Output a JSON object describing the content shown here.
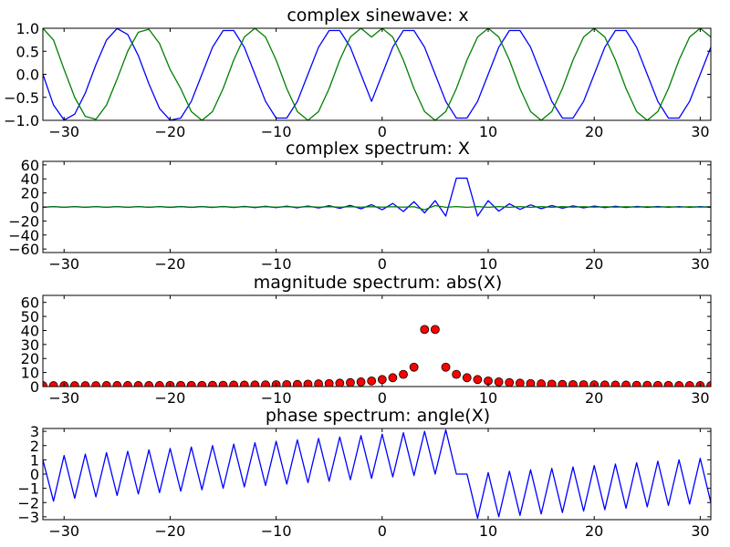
{
  "colors": {
    "blue": "#0000ff",
    "green": "#007f00",
    "red": "#ff0000",
    "axes": "#000000"
  },
  "chart_data": [
    {
      "type": "line",
      "title": "complex sinewave: x",
      "xlim": [
        -32,
        31
      ],
      "ylim": [
        -1.0,
        1.0
      ],
      "xticks": [
        -30,
        -20,
        -10,
        0,
        10,
        20,
        30
      ],
      "xtick_labels": [
        "−30",
        "−20",
        "−10",
        "0",
        "10",
        "20",
        "30"
      ],
      "yticks": [
        -1.0,
        -0.5,
        0.0,
        0.5,
        1.0
      ],
      "ytick_labels": [
        "−1.0",
        "−0.5",
        "0.0",
        "0.5",
        "1.0"
      ],
      "x": [
        -32,
        -31,
        -30,
        -29,
        -28,
        -27,
        -26,
        -25,
        -24,
        -23,
        -22,
        -21,
        -20,
        -19,
        -18,
        -17,
        -16,
        -15,
        -14,
        -13,
        -12,
        -11,
        -10,
        -9,
        -8,
        -7,
        -6,
        -5,
        -4,
        -3,
        -2,
        -1,
        0,
        1,
        2,
        3,
        4,
        5,
        6,
        7,
        8,
        9,
        10,
        11,
        12,
        13,
        14,
        15,
        16,
        17,
        18,
        19,
        20,
        21,
        22,
        23,
        24,
        25,
        26,
        27,
        28,
        29,
        30,
        31
      ],
      "series": [
        {
          "color": "blue",
          "values": [
            0.0,
            -0.667,
            -0.994,
            -0.866,
            -0.407,
            0.208,
            0.743,
            0.995,
            0.866,
            0.407,
            -0.208,
            -0.743,
            -0.995,
            -0.951,
            -0.588,
            0.0,
            0.588,
            0.951,
            0.951,
            0.588,
            0.0,
            -0.588,
            -0.951,
            -0.951,
            -0.588,
            0.0,
            0.588,
            0.951,
            0.951,
            0.588,
            0.0,
            -0.588,
            0.0,
            0.588,
            0.951,
            0.951,
            0.588,
            0.0,
            -0.588,
            -0.951,
            -0.951,
            -0.588,
            0.0,
            0.588,
            0.951,
            0.951,
            0.588,
            0.0,
            -0.588,
            -0.951,
            -0.951,
            -0.588,
            0.0,
            0.588,
            0.951,
            0.951,
            0.588,
            0.0,
            -0.588,
            -0.951,
            -0.951,
            -0.588,
            0.0,
            0.588
          ]
        },
        {
          "color": "green",
          "values": [
            1.0,
            0.745,
            0.105,
            -0.5,
            -0.914,
            -0.978,
            -0.669,
            -0.105,
            0.5,
            0.914,
            0.978,
            0.669,
            0.105,
            -0.309,
            -0.809,
            -1.0,
            -0.809,
            -0.309,
            0.309,
            0.809,
            1.0,
            0.809,
            0.309,
            -0.309,
            -0.809,
            -1.0,
            -0.809,
            -0.309,
            0.309,
            0.809,
            1.0,
            0.809,
            1.0,
            0.809,
            0.309,
            -0.309,
            -0.809,
            -1.0,
            -0.809,
            -0.309,
            0.309,
            0.809,
            1.0,
            0.809,
            0.309,
            -0.309,
            -0.809,
            -1.0,
            -0.809,
            -0.309,
            0.309,
            0.809,
            1.0,
            0.809,
            0.309,
            -0.309,
            -0.809,
            -1.0,
            -0.809,
            -0.309,
            0.309,
            0.809,
            1.0,
            0.809
          ]
        }
      ]
    },
    {
      "type": "line",
      "title": "complex spectrum: X",
      "xlim": [
        -32,
        31
      ],
      "ylim": [
        -65,
        65
      ],
      "xticks": [
        -30,
        -20,
        -10,
        0,
        10,
        20,
        30
      ],
      "xtick_labels": [
        "−30",
        "−20",
        "−10",
        "0",
        "10",
        "20",
        "30"
      ],
      "yticks": [
        -60,
        -40,
        -20,
        0,
        20,
        40,
        60
      ],
      "ytick_labels": [
        "−60",
        "−40",
        "−20",
        "0",
        "20",
        "40",
        "60"
      ],
      "x": [
        -32,
        -31,
        -30,
        -29,
        -28,
        -27,
        -26,
        -25,
        -24,
        -23,
        -22,
        -21,
        -20,
        -19,
        -18,
        -17,
        -16,
        -15,
        -14,
        -13,
        -12,
        -11,
        -10,
        -9,
        -8,
        -7,
        -6,
        -5,
        -4,
        -3,
        -2,
        -1,
        0,
        1,
        2,
        3,
        4,
        5,
        6,
        7,
        8,
        9,
        10,
        11,
        12,
        13,
        14,
        15,
        16,
        17,
        18,
        19,
        20,
        21,
        22,
        23,
        24,
        25,
        26,
        27,
        28,
        29,
        30,
        31
      ],
      "series": [
        {
          "color": "blue",
          "values": [
            -0.5,
            0.5,
            -0.5,
            0.5,
            -0.5,
            0.5,
            -0.5,
            0.5,
            -0.5,
            0.5,
            -0.5,
            0.5,
            -0.6,
            0.6,
            -0.6,
            0.6,
            -0.7,
            0.7,
            -0.8,
            0.8,
            -0.9,
            0.9,
            -1.0,
            1.1,
            -1.2,
            1.3,
            -1.5,
            1.7,
            -1.9,
            2.2,
            -2.6,
            3.2,
            -4.0,
            5.0,
            -6.5,
            7.5,
            -8.5,
            9.0,
            -13.0,
            41.0,
            41.0,
            -13.0,
            9.0,
            -6.0,
            4.5,
            -3.5,
            3.0,
            -2.5,
            2.0,
            -1.8,
            1.5,
            -1.3,
            1.2,
            -1.0,
            0.9,
            -0.8,
            0.7,
            -0.6,
            0.6,
            -0.5,
            0.5,
            -0.5,
            0.4,
            -0.4
          ]
        },
        {
          "color": "green",
          "values": [
            -0.3,
            0.3,
            -0.3,
            0.3,
            -0.3,
            0.3,
            -0.3,
            0.3,
            -0.3,
            0.3,
            -0.3,
            0.3,
            -0.3,
            0.3,
            -0.3,
            0.3,
            -0.3,
            0.3,
            -0.3,
            0.3,
            -0.3,
            0.3,
            -0.3,
            0.3,
            -0.3,
            0.3,
            -0.3,
            0.3,
            -0.3,
            0.3,
            -0.3,
            0.3,
            -0.3,
            0.3,
            -0.3,
            0.3,
            -4.0,
            2.0,
            -0.5,
            0.5,
            -0.5,
            0.5,
            -0.5,
            0.5,
            -0.5,
            0.5,
            -0.5,
            0.5,
            -0.5,
            0.5,
            -0.3,
            0.3,
            -0.3,
            0.3,
            -0.3,
            0.3,
            -0.3,
            0.3,
            -0.3,
            0.3,
            -0.3,
            0.3,
            -0.3,
            0.3
          ]
        }
      ]
    },
    {
      "type": "scatter",
      "title": "magnitude spectrum: abs(X)",
      "xlim": [
        -32,
        31
      ],
      "ylim": [
        0,
        65
      ],
      "xticks": [
        -30,
        -20,
        -10,
        0,
        10,
        20,
        30
      ],
      "xtick_labels": [
        "−30",
        "−20",
        "−10",
        "0",
        "10",
        "20",
        "30"
      ],
      "yticks": [
        0,
        10,
        20,
        30,
        40,
        50,
        60
      ],
      "ytick_labels": [
        "0",
        "10",
        "20",
        "30",
        "40",
        "50",
        "60"
      ],
      "x": [
        -32,
        -31,
        -30,
        -29,
        -28,
        -27,
        -26,
        -25,
        -24,
        -23,
        -22,
        -21,
        -20,
        -19,
        -18,
        -17,
        -16,
        -15,
        -14,
        -13,
        -12,
        -11,
        -10,
        -9,
        -8,
        -7,
        -6,
        -5,
        -4,
        -3,
        -2,
        -1,
        0,
        1,
        2,
        3,
        4,
        5,
        6,
        7,
        8,
        9,
        10,
        11,
        12,
        13,
        14,
        15,
        16,
        17,
        18,
        19,
        20,
        21,
        22,
        23,
        24,
        25,
        26,
        27,
        28,
        29,
        30,
        31
      ],
      "series": [
        {
          "color": "red",
          "marker": "circle",
          "values": [
            0.6,
            0.6,
            0.6,
            0.6,
            0.6,
            0.6,
            0.7,
            0.7,
            0.7,
            0.7,
            0.7,
            0.7,
            0.8,
            0.8,
            0.8,
            0.8,
            0.9,
            0.9,
            1.0,
            1.0,
            1.1,
            1.2,
            1.3,
            1.4,
            1.5,
            1.7,
            1.9,
            2.1,
            2.4,
            2.8,
            3.3,
            4.0,
            5.0,
            6.3,
            8.7,
            13.8,
            40.7,
            40.7,
            13.8,
            8.7,
            6.3,
            5.0,
            4.0,
            3.3,
            2.8,
            2.4,
            2.1,
            1.9,
            1.7,
            1.5,
            1.4,
            1.3,
            1.2,
            1.1,
            1.0,
            1.0,
            0.9,
            0.9,
            0.8,
            0.8,
            0.7,
            0.7,
            0.7,
            0.6
          ]
        }
      ]
    },
    {
      "type": "line",
      "title": "phase spectrum: angle(X)",
      "xlim": [
        -32,
        31
      ],
      "ylim": [
        -3.2,
        3.2
      ],
      "xticks": [
        -30,
        -20,
        -10,
        0,
        10,
        20,
        30
      ],
      "xtick_labels": [
        "−30",
        "−20",
        "−10",
        "0",
        "10",
        "20",
        "30"
      ],
      "yticks": [
        -3,
        -2,
        -1,
        0,
        1,
        2,
        3
      ],
      "ytick_labels": [
        "−3",
        "−2",
        "−1",
        "0",
        "1",
        "2",
        "3"
      ],
      "x": [
        -32,
        -31,
        -30,
        -29,
        -28,
        -27,
        -26,
        -25,
        -24,
        -23,
        -22,
        -21,
        -20,
        -19,
        -18,
        -17,
        -16,
        -15,
        -14,
        -13,
        -12,
        -11,
        -10,
        -9,
        -8,
        -7,
        -6,
        -5,
        -4,
        -3,
        -2,
        -1,
        0,
        1,
        2,
        3,
        4,
        5,
        6,
        7,
        8,
        9,
        10,
        11,
        12,
        13,
        14,
        15,
        16,
        17,
        18,
        19,
        20,
        21,
        22,
        23,
        24,
        25,
        26,
        27,
        28,
        29,
        30,
        31
      ],
      "series": [
        {
          "color": "blue",
          "values": [
            1.0,
            -1.9,
            1.3,
            -1.7,
            1.4,
            -1.6,
            1.5,
            -1.5,
            1.6,
            -1.4,
            1.7,
            -1.3,
            1.8,
            -1.2,
            1.9,
            -1.1,
            2.0,
            -1.0,
            2.1,
            -0.9,
            2.2,
            -0.8,
            2.3,
            -0.7,
            2.4,
            -0.6,
            2.5,
            -0.5,
            2.6,
            -0.4,
            2.7,
            -0.3,
            2.8,
            -0.2,
            2.9,
            -0.1,
            3.0,
            0.0,
            3.1,
            0.0,
            0.0,
            -3.1,
            0.1,
            -3.0,
            0.2,
            -2.9,
            0.3,
            -2.8,
            0.4,
            -2.7,
            0.5,
            -2.6,
            0.6,
            -2.5,
            0.7,
            -2.4,
            0.8,
            -2.3,
            0.9,
            -2.2,
            1.0,
            -2.1,
            1.1,
            -2.0
          ]
        }
      ]
    }
  ]
}
